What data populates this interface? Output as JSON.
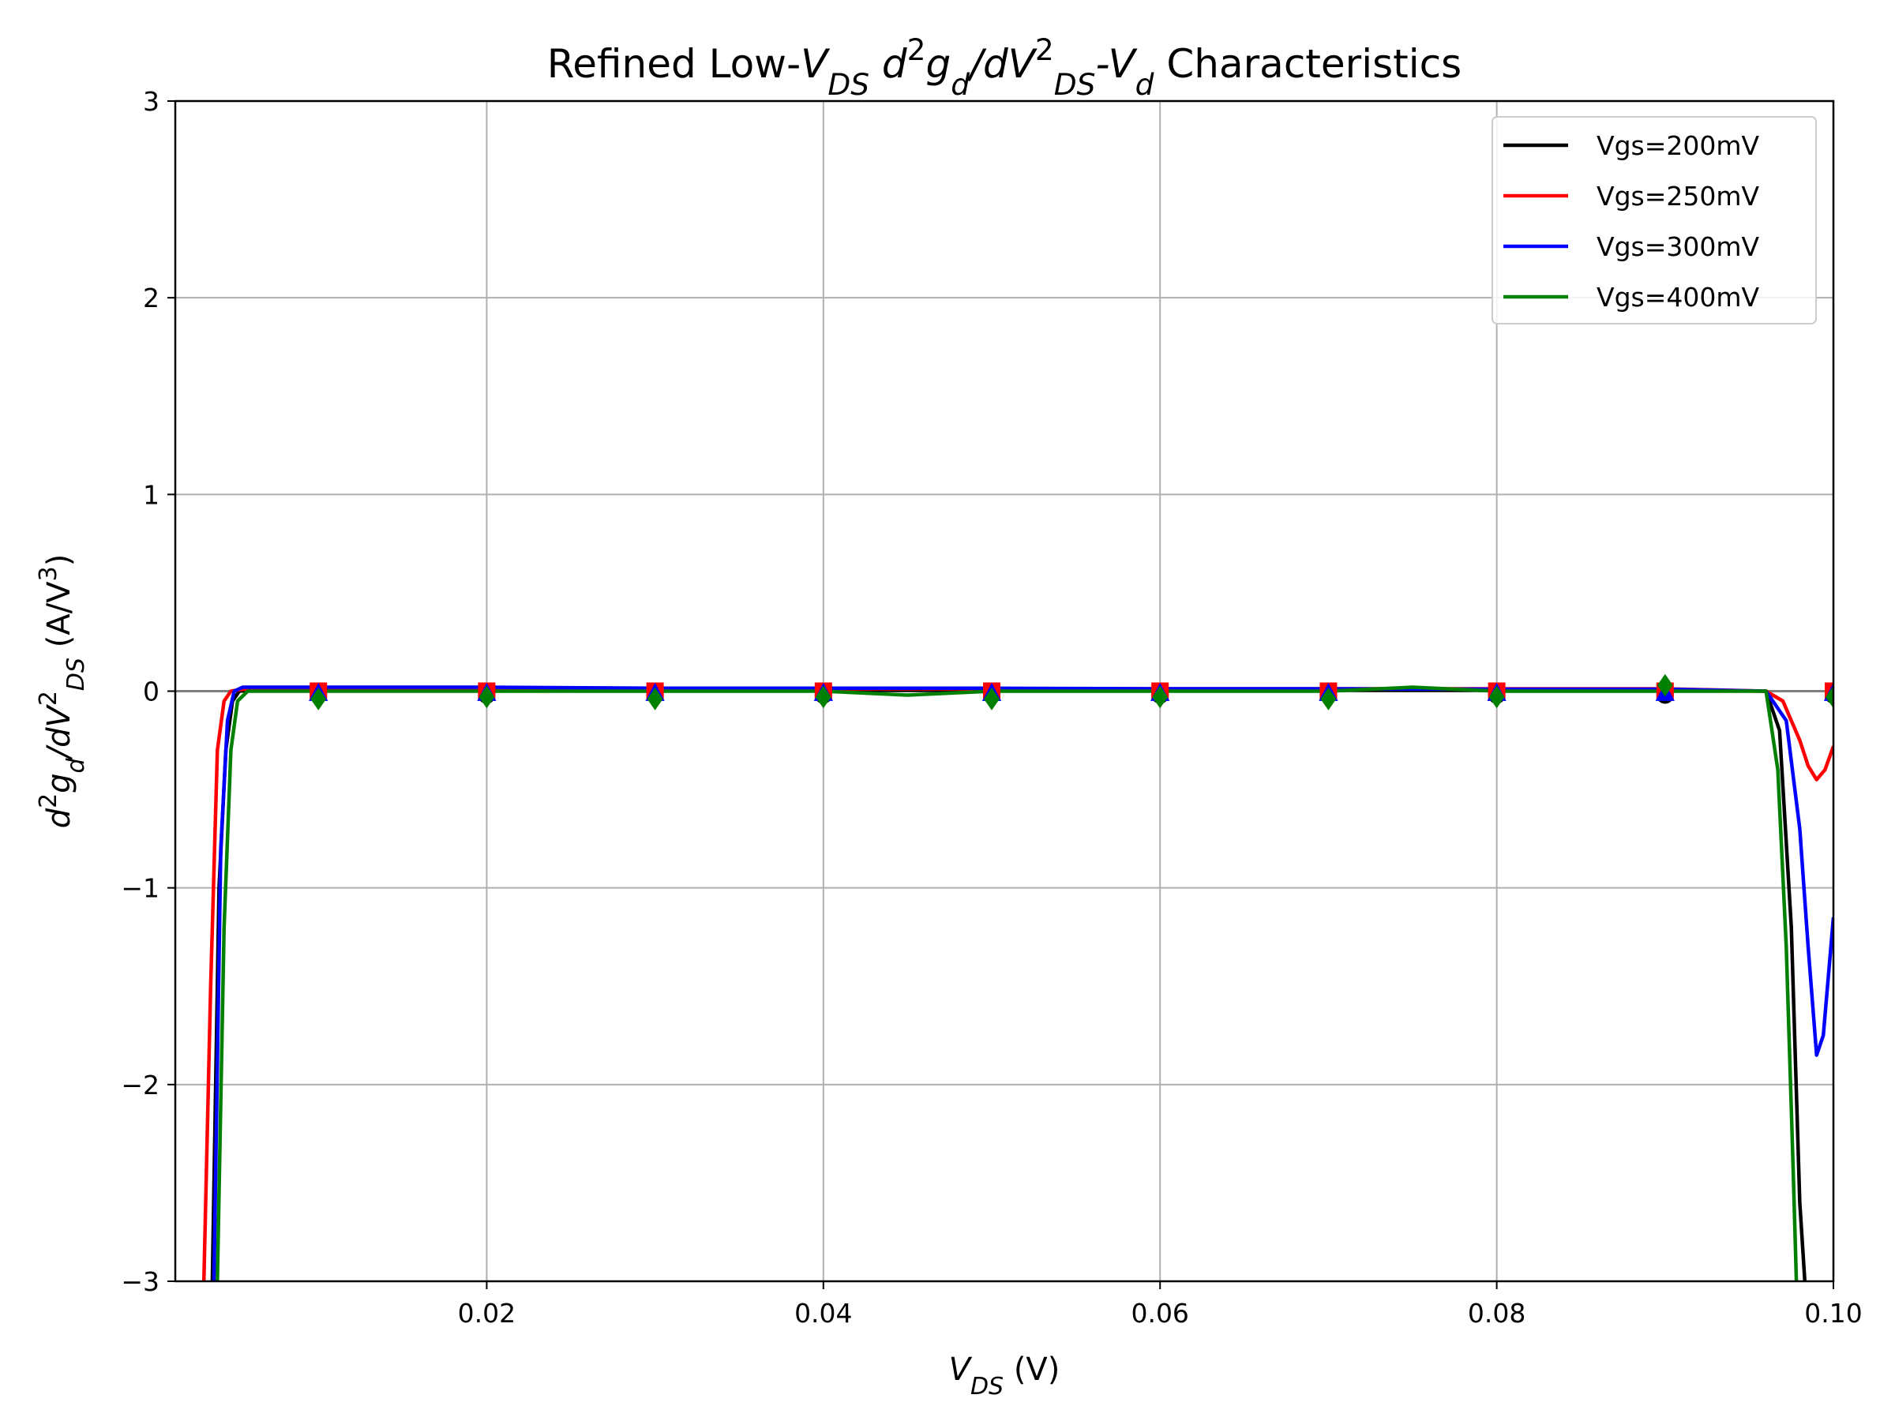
{
  "chart_data": {
    "type": "line",
    "title_parts": [
      "Refined Low-",
      "V",
      "DS",
      " d",
      "2",
      "g",
      "d",
      "/dV",
      "2",
      "DS",
      "-V",
      "d",
      " Characteristics"
    ],
    "xlabel_parts": [
      "V",
      "DS",
      " (V)"
    ],
    "ylabel_parts": [
      "d",
      "2",
      "g",
      "d",
      "/dV",
      "2",
      "DS",
      " (A/V",
      "3",
      ")"
    ],
    "xlim": [
      0.0015,
      0.1
    ],
    "ylim": [
      -3,
      3
    ],
    "xticks": [
      0.02,
      0.04,
      0.06,
      0.08,
      0.1
    ],
    "xtick_labels": [
      "0.02",
      "0.04",
      "0.06",
      "0.08",
      "0.10"
    ],
    "yticks": [
      -3,
      -2,
      -1,
      0,
      1,
      2,
      3
    ],
    "ytick_labels": [
      "−3",
      "−2",
      "−1",
      "0",
      "1",
      "2",
      "3"
    ],
    "grid": true,
    "legend_position": "top-right",
    "zero_line": true,
    "marker_x": [
      0.01,
      0.02,
      0.03,
      0.04,
      0.05,
      0.06,
      0.07,
      0.08,
      0.09,
      0.1
    ],
    "series": [
      {
        "name": "Vgs=200mV",
        "color": "#000000",
        "marker": "circle",
        "x": [
          0.0037,
          0.0041,
          0.0045,
          0.0049,
          0.0053,
          0.006,
          0.01,
          0.02,
          0.03,
          0.04,
          0.05,
          0.06,
          0.07,
          0.08,
          0.09,
          0.096,
          0.0968,
          0.0975,
          0.098,
          0.0983
        ],
        "y": [
          -3.0,
          -1.0,
          -0.3,
          -0.05,
          0.0,
          0.005,
          0.005,
          0.005,
          0.005,
          0.005,
          0.005,
          0.005,
          0.005,
          0.005,
          0.005,
          0.0,
          -0.2,
          -1.2,
          -2.6,
          -3.0
        ],
        "markers": [
          -0.02,
          -0.02,
          -0.02,
          -0.02,
          -0.02,
          -0.02,
          -0.02,
          -0.02,
          -0.02,
          -0.02
        ]
      },
      {
        "name": "Vgs=250mV",
        "color": "#ff0000",
        "marker": "square",
        "x": [
          0.0032,
          0.0036,
          0.004,
          0.0044,
          0.0048,
          0.0055,
          0.01,
          0.02,
          0.03,
          0.04,
          0.05,
          0.06,
          0.07,
          0.08,
          0.09,
          0.096,
          0.097,
          0.098,
          0.0985,
          0.099,
          0.0995,
          0.1
        ],
        "y": [
          -3.0,
          -1.5,
          -0.3,
          -0.05,
          0.0,
          0.01,
          0.012,
          0.012,
          0.012,
          0.012,
          0.012,
          0.012,
          0.012,
          0.012,
          0.012,
          0.0,
          -0.05,
          -0.25,
          -0.38,
          -0.45,
          -0.4,
          -0.28
        ],
        "markers": [
          0.0,
          0.0,
          0.0,
          0.0,
          0.0,
          0.0,
          0.0,
          0.0,
          0.0,
          0.0
        ]
      },
      {
        "name": "Vgs=300mV",
        "color": "#0000ff",
        "marker": "triangle",
        "x": [
          0.0038,
          0.0042,
          0.0046,
          0.005,
          0.0055,
          0.006,
          0.01,
          0.02,
          0.03,
          0.04,
          0.05,
          0.06,
          0.07,
          0.08,
          0.09,
          0.096,
          0.0972,
          0.098,
          0.0985,
          0.099,
          0.0994,
          0.0997,
          0.1
        ],
        "y": [
          -3.0,
          -0.8,
          -0.15,
          0.0,
          0.02,
          0.02,
          0.02,
          0.02,
          0.015,
          0.015,
          0.015,
          0.012,
          0.012,
          0.01,
          0.01,
          0.0,
          -0.15,
          -0.7,
          -1.3,
          -1.85,
          -1.75,
          -1.45,
          -1.15
        ],
        "markers": [
          -0.01,
          -0.01,
          -0.01,
          -0.01,
          -0.01,
          -0.01,
          -0.01,
          -0.01,
          -0.01,
          -0.01
        ]
      },
      {
        "name": "Vgs=400mV",
        "color": "#008000",
        "marker": "diamond",
        "x": [
          0.004,
          0.0044,
          0.0048,
          0.0052,
          0.0058,
          0.01,
          0.02,
          0.03,
          0.04,
          0.045,
          0.05,
          0.06,
          0.07,
          0.075,
          0.08,
          0.09,
          0.096,
          0.0967,
          0.0972,
          0.0976,
          0.0978
        ],
        "y": [
          -3.0,
          -1.2,
          -0.3,
          -0.05,
          0.0,
          0.0,
          0.0,
          0.0,
          0.0,
          -0.02,
          0.0,
          0.0,
          0.0,
          0.02,
          0.0,
          0.0,
          0.0,
          -0.4,
          -1.3,
          -2.4,
          -3.0
        ],
        "markers": [
          -0.04,
          -0.03,
          -0.04,
          -0.03,
          -0.04,
          -0.03,
          -0.04,
          -0.03,
          0.03,
          -0.03
        ]
      }
    ]
  }
}
